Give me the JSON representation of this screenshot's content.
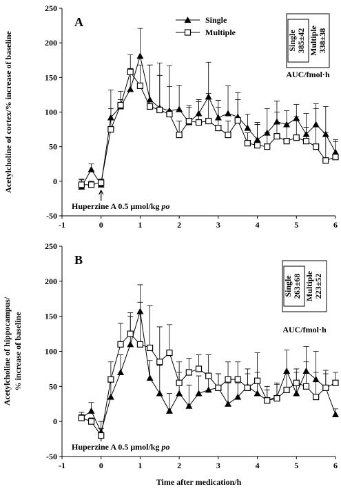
{
  "chart_data": [
    {
      "type": "line",
      "panel_label": "A",
      "ylabel": [
        "Acetylcholine of cortex/% increase of baseline"
      ],
      "x": [
        -0.5,
        -0.25,
        0,
        0.25,
        0.5,
        0.75,
        1,
        1.25,
        1.5,
        1.75,
        2,
        2.25,
        2.5,
        2.75,
        3,
        3.25,
        3.5,
        3.75,
        4,
        4.25,
        4.5,
        4.75,
        5,
        5.25,
        5.5,
        5.75,
        6
      ],
      "series": [
        {
          "name": "Single",
          "color": "#000000",
          "marker": "triangle",
          "values": [
            -8,
            17,
            -5,
            92,
            108,
            133,
            181,
            118,
            106,
            102,
            104,
            85,
            98,
            122,
            92,
            98,
            93,
            77,
            60,
            70,
            86,
            82,
            91,
            68,
            82,
            68,
            42
          ],
          "errors": [
            10,
            8,
            8,
            40,
            10,
            30,
            40,
            50,
            65,
            65,
            35,
            25,
            20,
            50,
            25,
            40,
            25,
            20,
            25,
            35,
            30,
            20,
            20,
            30,
            30,
            40,
            15
          ]
        },
        {
          "name": "Multiple",
          "color": "#000000",
          "marker": "square",
          "values": [
            -5,
            -5,
            -2,
            75,
            110,
            158,
            138,
            108,
            103,
            97,
            67,
            87,
            85,
            87,
            77,
            67,
            88,
            55,
            52,
            50,
            65,
            58,
            63,
            58,
            50,
            30,
            35
          ],
          "errors": [
            8,
            5,
            5,
            30,
            20,
            25,
            30,
            60,
            50,
            40,
            20,
            20,
            30,
            40,
            30,
            20,
            40,
            15,
            30,
            20,
            35,
            25,
            30,
            20,
            55,
            40,
            25
          ]
        }
      ],
      "legend": true,
      "auc": [
        {
          "label": "Single",
          "text": "385±42"
        },
        {
          "label": "Multiple",
          "text": "338±38"
        }
      ],
      "auc_unit": "AUC/fmol·h",
      "annotation": {
        "text": "Huperzine A 0.5 μmol/kg",
        "italic": "po"
      },
      "xlim": [
        -1,
        6
      ],
      "xticks": [
        -1,
        0,
        1,
        2,
        3,
        4,
        5,
        6
      ],
      "ylim": [
        -50,
        250
      ],
      "yticks": [
        -50,
        0,
        50,
        100,
        150,
        200,
        250
      ]
    },
    {
      "type": "line",
      "panel_label": "B",
      "ylabel": [
        "Acetylcholine of hippocampus/",
        "% increase of baseline"
      ],
      "xlabel": "Time after medication/h",
      "x": [
        -0.5,
        -0.25,
        0,
        0.25,
        0.5,
        0.75,
        1,
        1.25,
        1.5,
        1.75,
        2,
        2.25,
        2.5,
        2.75,
        3,
        3.25,
        3.5,
        3.75,
        4,
        4.25,
        4.5,
        4.75,
        5,
        5.25,
        5.5,
        5.75,
        6
      ],
      "series": [
        {
          "color": "#000000",
          "marker": "triangle",
          "values": [
            5,
            15,
            -15,
            35,
            70,
            110,
            157,
            62,
            40,
            15,
            40,
            22,
            40,
            45,
            48,
            25,
            35,
            50,
            40,
            30,
            35,
            72,
            40,
            72,
            60,
            48,
            10
          ],
          "errors": [
            8,
            12,
            15,
            25,
            25,
            40,
            38,
            25,
            40,
            25,
            30,
            30,
            25,
            20,
            20,
            30,
            20,
            25,
            30,
            20,
            20,
            30,
            30,
            35,
            40,
            25,
            8
          ]
        },
        {
          "color": "#000000",
          "marker": "square",
          "values": [
            5,
            0,
            -20,
            60,
            110,
            125,
            110,
            105,
            85,
            98,
            55,
            70,
            75,
            65,
            48,
            60,
            60,
            48,
            58,
            30,
            33,
            45,
            55,
            50,
            35,
            48,
            55
          ],
          "errors": [
            5,
            5,
            10,
            25,
            30,
            30,
            60,
            60,
            50,
            40,
            30,
            20,
            20,
            30,
            20,
            25,
            25,
            20,
            40,
            15,
            20,
            25,
            20,
            35,
            35,
            20,
            15
          ]
        }
      ],
      "legend": false,
      "auc": [
        {
          "label": "Single",
          "text": "263±68"
        },
        {
          "label": "Multiple",
          "text": "223±52"
        }
      ],
      "auc_unit": "AUC/fmol·h",
      "annotation": {
        "text": "Huperzine A 0.5 μmol/kg",
        "italic": "po"
      },
      "xlim": [
        -1,
        6
      ],
      "xticks": [
        -1,
        0,
        1,
        2,
        3,
        4,
        5,
        6
      ],
      "ylim": [
        -50,
        250
      ],
      "yticks": [
        -50,
        0,
        50,
        100,
        150,
        200,
        250
      ]
    }
  ]
}
